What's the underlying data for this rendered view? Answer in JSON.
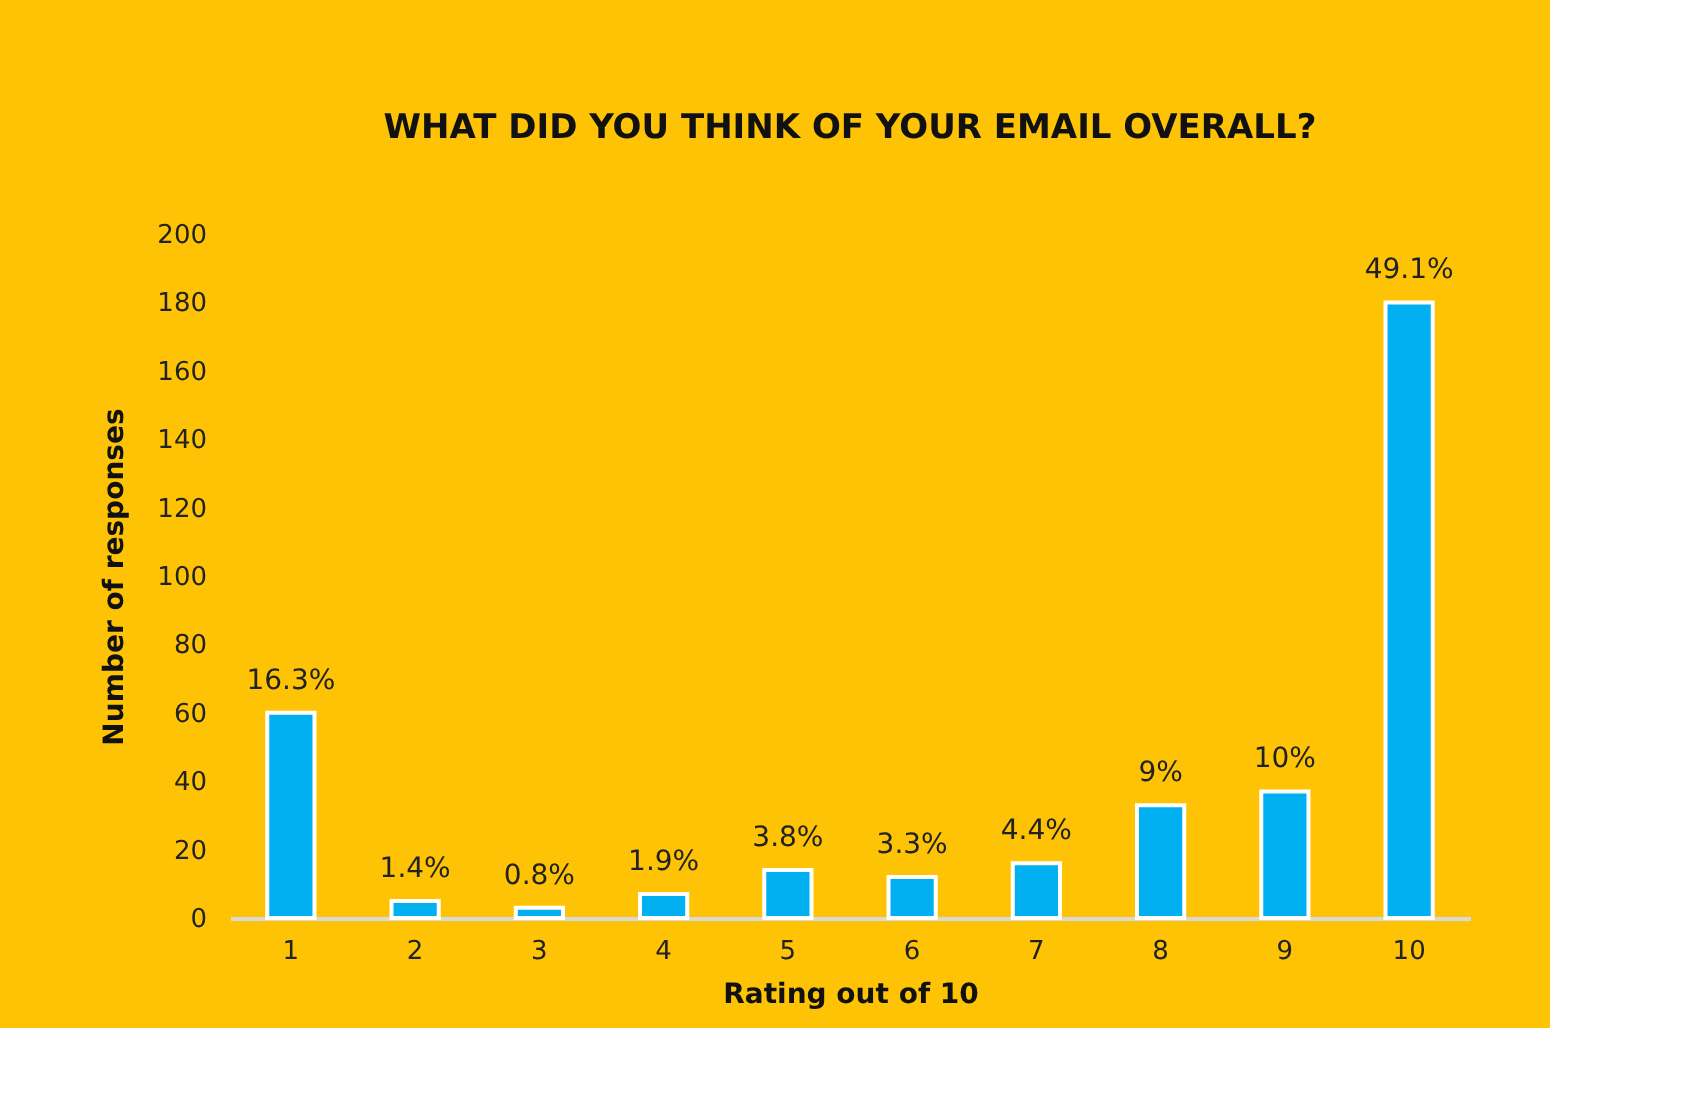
{
  "chart_data": {
    "type": "bar",
    "title": "WHAT DID YOU THINK OF YOUR EMAIL OVERALL?",
    "xlabel": "Rating out of 10",
    "ylabel": "Number of responses",
    "categories": [
      "1",
      "2",
      "3",
      "4",
      "5",
      "6",
      "7",
      "8",
      "9",
      "10"
    ],
    "values": [
      60,
      5,
      3,
      7,
      14,
      12,
      16,
      33,
      37,
      180
    ],
    "annotations": [
      {
        "text": "16.3%",
        "x": "1",
        "y": 60
      },
      {
        "text": "1.4%",
        "x": "2",
        "y": 5
      },
      {
        "text": "0.8%",
        "x": "3",
        "y": 3
      },
      {
        "text": "1.9%",
        "x": "4",
        "y": 7
      },
      {
        "text": "3.8%",
        "x": "5",
        "y": 14
      },
      {
        "text": "3.3%",
        "x": "6",
        "y": 12
      },
      {
        "text": "4.4%",
        "x": "7",
        "y": 16
      },
      {
        "text": "9%",
        "x": "8",
        "y": 33
      },
      {
        "text": "10%",
        "x": "9",
        "y": 37
      },
      {
        "text": "49.1%",
        "x": "10",
        "y": 180
      }
    ],
    "color": "#00b0f0",
    "ylim": [
      0,
      200
    ],
    "yticks": [
      0,
      20,
      40,
      60,
      80,
      100,
      120,
      140,
      160,
      180,
      200
    ],
    "grid": false
  }
}
